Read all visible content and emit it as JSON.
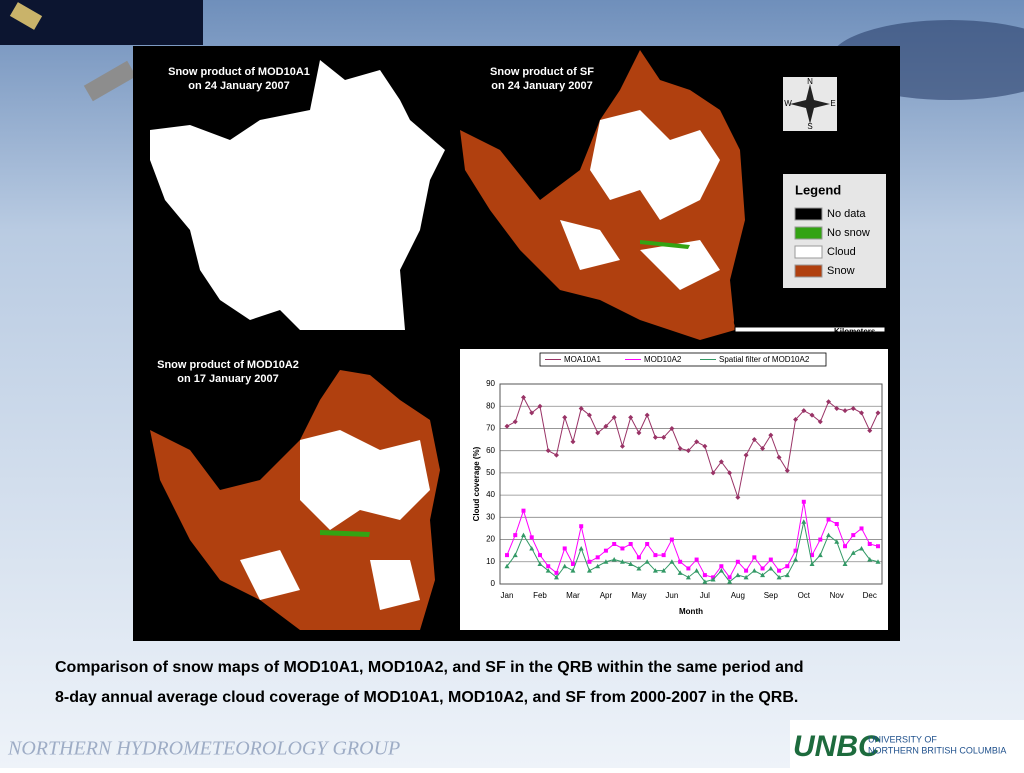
{
  "maps": [
    {
      "title_lines": [
        "Snow product of MOD10A1",
        "on 24 January 2007"
      ]
    },
    {
      "title_lines": [
        "Snow product of SF",
        "on 24 January 2007"
      ]
    },
    {
      "title_lines": [
        "Snow product of MOD10A2",
        "on 17 January 2007"
      ]
    }
  ],
  "compass": {
    "n": "N",
    "e": "E",
    "s": "S",
    "w": "W"
  },
  "legend": {
    "title": "Legend",
    "items": [
      {
        "label": "No data",
        "color": "#000000"
      },
      {
        "label": "No snow",
        "color": "#33a313"
      },
      {
        "label": "Cloud",
        "color": "#ffffff"
      },
      {
        "label": "Snow",
        "color": "#b0400f"
      }
    ]
  },
  "scale_bar": {
    "ticks": [
      "0",
      "12.5",
      "25",
      "50"
    ],
    "unit": "Kilometers"
  },
  "caption": [
    "Comparison of snow maps of MOD10A1, MOD10A2, and SF in the QRB within the same period and",
    "8-day annual average cloud coverage of MOD10A1, MOD10A2, and SF from 2000-2007 in the QRB."
  ],
  "footer": "NORTHERN HYDROMETEOROLOGY GROUP",
  "logo": {
    "mark": "UNBC",
    "lines": [
      "UNIVERSITY OF",
      "NORTHERN BRITISH COLUMBIA"
    ]
  },
  "chart_data": {
    "type": "line",
    "x_label": "Month",
    "y_label": "Cloud coverage (%)",
    "categories": [
      "Jan",
      null,
      null,
      null,
      "Feb",
      null,
      null,
      null,
      "Mar",
      null,
      null,
      null,
      "Apr",
      null,
      null,
      null,
      "May",
      null,
      null,
      null,
      "Jun",
      null,
      null,
      null,
      "Jul",
      null,
      null,
      null,
      "Aug",
      null,
      null,
      null,
      "Sep",
      null,
      null,
      null,
      "Oct",
      null,
      null,
      null,
      "Nov",
      null,
      null,
      null,
      "Dec",
      null
    ],
    "series": [
      {
        "name": "MOA10A1",
        "color": "#993366",
        "marker": "diamond",
        "values": [
          71,
          73,
          84,
          77,
          80,
          60,
          58,
          75,
          64,
          79,
          76,
          68,
          71,
          75,
          62,
          75,
          68,
          76,
          66,
          66,
          70,
          61,
          60,
          64,
          62,
          50,
          55,
          50,
          39,
          58,
          65,
          61,
          67,
          57,
          51,
          74,
          78,
          76,
          73,
          82,
          79,
          78,
          79,
          77,
          69,
          77
        ]
      },
      {
        "name": "MOD10A2",
        "color": "#ff00ff",
        "marker": "square",
        "values": [
          13,
          22,
          33,
          21,
          13,
          8,
          5,
          16,
          9,
          26,
          10,
          12,
          15,
          18,
          16,
          18,
          12,
          18,
          13,
          13,
          20,
          10,
          7,
          11,
          4,
          3,
          8,
          3,
          10,
          6,
          12,
          7,
          11,
          6,
          8,
          15,
          37,
          13,
          20,
          29,
          27,
          17,
          22,
          25,
          18,
          17
        ]
      },
      {
        "name": "Spatial filter of MOD10A2",
        "color": "#339966",
        "marker": "triangle",
        "values": [
          8,
          13,
          22,
          16,
          9,
          6,
          3,
          8,
          6,
          16,
          6,
          8,
          10,
          11,
          10,
          9,
          7,
          10,
          6,
          6,
          10,
          5,
          3,
          6,
          1,
          2,
          6,
          1,
          4,
          3,
          6,
          4,
          7,
          3,
          4,
          11,
          28,
          9,
          13,
          22,
          19,
          9,
          14,
          16,
          11,
          10
        ]
      }
    ],
    "ylim": [
      0,
      90
    ],
    "yticks": [
      0,
      10,
      20,
      30,
      40,
      50,
      60,
      70,
      80,
      90
    ],
    "grid": true
  }
}
